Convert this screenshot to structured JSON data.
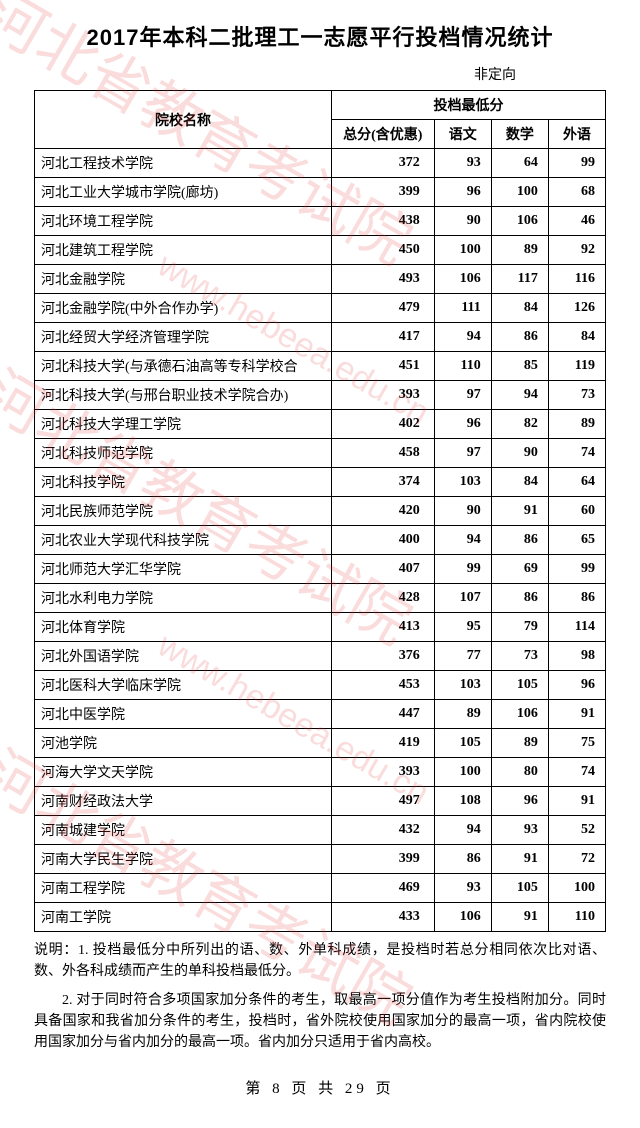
{
  "title": "2017年本科二批理工一志愿平行投档情况统计",
  "subtitle": "非定向",
  "header": {
    "name": "院校名称",
    "group": "投档最低分",
    "total": "总分(含优惠)",
    "chinese": "语文",
    "math": "数学",
    "foreign": "外语"
  },
  "rows": [
    {
      "name": "河北工程技术学院",
      "total": "372",
      "c": "93",
      "m": "64",
      "f": "99"
    },
    {
      "name": "河北工业大学城市学院(廊坊)",
      "total": "399",
      "c": "96",
      "m": "100",
      "f": "68"
    },
    {
      "name": "河北环境工程学院",
      "total": "438",
      "c": "90",
      "m": "106",
      "f": "46"
    },
    {
      "name": "河北建筑工程学院",
      "total": "450",
      "c": "100",
      "m": "89",
      "f": "92"
    },
    {
      "name": "河北金融学院",
      "total": "493",
      "c": "106",
      "m": "117",
      "f": "116"
    },
    {
      "name": "河北金融学院(中外合作办学)",
      "total": "479",
      "c": "111",
      "m": "84",
      "f": "126"
    },
    {
      "name": "河北经贸大学经济管理学院",
      "total": "417",
      "c": "94",
      "m": "86",
      "f": "84"
    },
    {
      "name": "河北科技大学(与承德石油高等专科学校合",
      "total": "451",
      "c": "110",
      "m": "85",
      "f": "119"
    },
    {
      "name": "河北科技大学(与邢台职业技术学院合办)",
      "total": "393",
      "c": "97",
      "m": "94",
      "f": "73"
    },
    {
      "name": "河北科技大学理工学院",
      "total": "402",
      "c": "96",
      "m": "82",
      "f": "89"
    },
    {
      "name": "河北科技师范学院",
      "total": "458",
      "c": "97",
      "m": "90",
      "f": "74"
    },
    {
      "name": "河北科技学院",
      "total": "374",
      "c": "103",
      "m": "84",
      "f": "64"
    },
    {
      "name": "河北民族师范学院",
      "total": "420",
      "c": "90",
      "m": "91",
      "f": "60"
    },
    {
      "name": "河北农业大学现代科技学院",
      "total": "400",
      "c": "94",
      "m": "86",
      "f": "65"
    },
    {
      "name": "河北师范大学汇华学院",
      "total": "407",
      "c": "99",
      "m": "69",
      "f": "99"
    },
    {
      "name": "河北水利电力学院",
      "total": "428",
      "c": "107",
      "m": "86",
      "f": "86"
    },
    {
      "name": "河北体育学院",
      "total": "413",
      "c": "95",
      "m": "79",
      "f": "114"
    },
    {
      "name": "河北外国语学院",
      "total": "376",
      "c": "77",
      "m": "73",
      "f": "98"
    },
    {
      "name": "河北医科大学临床学院",
      "total": "453",
      "c": "103",
      "m": "105",
      "f": "96"
    },
    {
      "name": "河北中医学院",
      "total": "447",
      "c": "89",
      "m": "106",
      "f": "91"
    },
    {
      "name": "河池学院",
      "total": "419",
      "c": "105",
      "m": "89",
      "f": "75"
    },
    {
      "name": "河海大学文天学院",
      "total": "393",
      "c": "100",
      "m": "80",
      "f": "74"
    },
    {
      "name": "河南财经政法大学",
      "total": "497",
      "c": "108",
      "m": "96",
      "f": "91"
    },
    {
      "name": "河南城建学院",
      "total": "432",
      "c": "94",
      "m": "93",
      "f": "52"
    },
    {
      "name": "河南大学民生学院",
      "total": "399",
      "c": "86",
      "m": "91",
      "f": "72"
    },
    {
      "name": "河南工程学院",
      "total": "469",
      "c": "93",
      "m": "105",
      "f": "100"
    },
    {
      "name": "河南工学院",
      "total": "433",
      "c": "106",
      "m": "91",
      "f": "110"
    }
  ],
  "notes": {
    "n1": "说明：1. 投档最低分中所列出的语、数、外单科成绩，是投档时若总分相同依次比对语、数、外各科成绩而产生的单科投档最低分。",
    "n2": "2. 对于同时符合多项国家加分条件的考生，取最高一项分值作为考生投档附加分。同时具备国家和我省加分条件的考生，投档时，省外院校使用国家加分的最高一项，省内院校使用国家加分与省内加分的最高一项。省内加分只适用于省内高校。"
  },
  "pager": {
    "p1": "第",
    "page": "8",
    "p2": "页 共",
    "totalpages": "29",
    "p3": "页"
  },
  "watermark": {
    "text": "河北省教育考试院",
    "url": "www.hebeea.edu.cn"
  }
}
